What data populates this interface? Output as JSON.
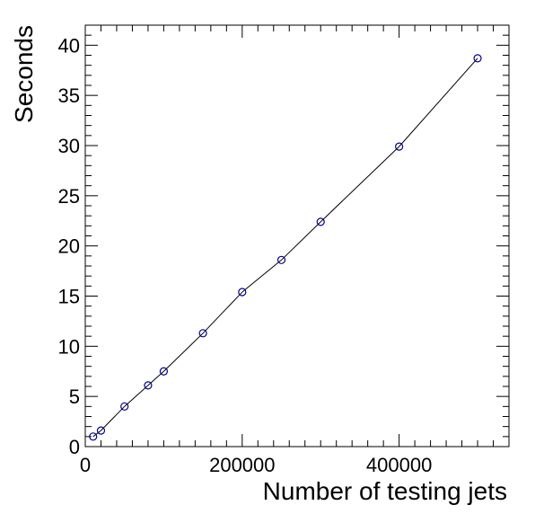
{
  "chart_data": {
    "type": "line",
    "title": "",
    "xlabel": "Number of testing jets",
    "ylabel": "Seconds",
    "xlim": [
      0,
      540000
    ],
    "ylim": [
      0,
      42
    ],
    "x_ticks": [
      0,
      200000,
      400000
    ],
    "x_tick_labels": [
      "0",
      "200000",
      "400000"
    ],
    "y_ticks": [
      0,
      5,
      10,
      15,
      20,
      25,
      30,
      35,
      40
    ],
    "y_tick_labels": [
      "0",
      "5",
      "10",
      "15",
      "20",
      "25",
      "30",
      "35",
      "40"
    ],
    "grid": false,
    "legend": "none",
    "marker": "open-circle",
    "colors": {
      "marker": "#00008b",
      "line": "#000000",
      "frame": "#000000"
    },
    "series": [
      {
        "x": [
          10000,
          20000,
          50000,
          80000,
          100000,
          150000,
          200000,
          250000,
          300000,
          400000,
          500000
        ],
        "y": [
          1.0,
          1.6,
          4.0,
          6.1,
          7.5,
          11.3,
          15.4,
          18.6,
          22.4,
          29.9,
          38.7
        ]
      }
    ]
  }
}
